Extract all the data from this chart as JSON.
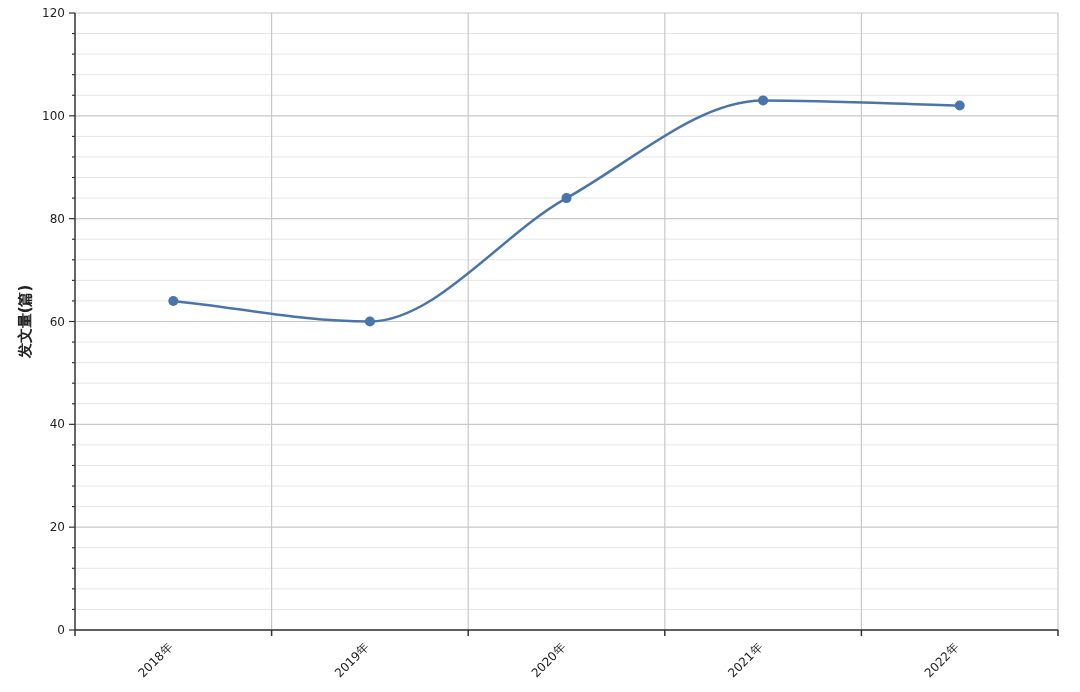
{
  "chart_data": {
    "type": "line",
    "ylabel": "发文量(篇)",
    "categories": [
      "2018年",
      "2019年",
      "2020年",
      "2021年",
      "2022年"
    ],
    "series": [
      {
        "color": "#4a75aa",
        "values": [
          64,
          60,
          84,
          103,
          102
        ]
      }
    ],
    "ylim": [
      0,
      120
    ],
    "yticks": [
      0,
      {
        "value": 4,
        "label": null
      },
      {
        "value": 8,
        "label": null
      },
      {
        "value": 12,
        "label": null
      },
      {
        "value": 16,
        "label": null
      },
      20,
      {
        "value": 24,
        "label": null
      },
      {
        "value": 28,
        "label": null
      },
      {
        "value": 32,
        "label": null
      },
      {
        "value": 36,
        "label": null
      },
      40,
      {
        "value": 44,
        "label": null
      },
      {
        "value": 48,
        "label": null
      },
      {
        "value": 52,
        "label": null
      },
      {
        "value": 56,
        "label": null
      },
      60,
      {
        "value": 64,
        "label": null
      },
      {
        "value": 68,
        "label": null
      },
      {
        "value": 72,
        "label": null
      },
      {
        "value": 76,
        "label": null
      },
      80,
      {
        "value": 84,
        "label": null
      },
      {
        "value": 88,
        "label": null
      },
      {
        "value": 92,
        "label": null
      },
      {
        "value": 96,
        "label": null
      },
      100,
      {
        "value": 104,
        "label": null
      },
      {
        "value": 108,
        "label": null
      },
      {
        "value": 112,
        "label": null
      },
      {
        "value": 116,
        "label": null
      },
      120
    ],
    "grid": true,
    "marker": "circle",
    "line_style": "solid"
  }
}
